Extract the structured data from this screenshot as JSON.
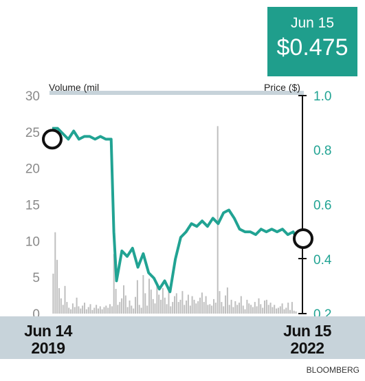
{
  "callout": {
    "date": "Jun 15",
    "price": "$0.475"
  },
  "footer": {
    "start": {
      "line1": "Jun 14",
      "line2": "2019"
    },
    "end": {
      "line1": "Jun 15",
      "line2": "2022"
    }
  },
  "source": "BLOOMBERG",
  "colors": {
    "price_line": "#21a393",
    "volume_bars": "#bfbfbf",
    "callout_bg": "#1f9e8c",
    "footer_band": "#c7d3da",
    "top_rule": "#c7d3da"
  },
  "chart_data": {
    "type": "line",
    "left_axis": {
      "label": "Volume (mil",
      "ticks": [
        "30",
        "25",
        "20",
        "15",
        "10",
        "5",
        "0"
      ],
      "range": [
        0,
        30
      ]
    },
    "right_axis": {
      "label": "Price ($)",
      "ticks": [
        "1.0",
        "0.8",
        "0.6",
        "0.4",
        "0.2"
      ],
      "range": [
        0.2,
        1.0
      ]
    },
    "x_range": [
      "2019-06-14",
      "2022-06-15"
    ],
    "price": {
      "x": [
        "2019-06-14",
        "2019-07-08",
        "2019-08-01",
        "2019-08-25",
        "2019-09-18",
        "2019-10-12",
        "2019-11-05",
        "2019-11-29",
        "2019-12-23",
        "2020-01-16",
        "2020-02-09",
        "2020-03-04",
        "2020-03-16",
        "2020-03-28",
        "2020-04-21",
        "2020-05-15",
        "2020-06-08",
        "2020-07-02",
        "2020-07-26",
        "2020-08-19",
        "2020-09-12",
        "2020-10-06",
        "2020-10-30",
        "2020-11-23",
        "2020-12-17",
        "2021-01-10",
        "2021-02-03",
        "2021-02-27",
        "2021-03-23",
        "2021-04-16",
        "2021-05-10",
        "2021-06-03",
        "2021-06-27",
        "2021-07-21",
        "2021-08-14",
        "2021-09-07",
        "2021-10-01",
        "2021-10-25",
        "2021-11-18",
        "2021-12-12",
        "2022-01-05",
        "2022-01-29",
        "2022-02-22",
        "2022-03-18",
        "2022-04-11",
        "2022-05-05",
        "2022-05-29",
        "2022-06-15"
      ],
      "y": [
        0.88,
        0.88,
        0.86,
        0.84,
        0.87,
        0.84,
        0.85,
        0.85,
        0.84,
        0.85,
        0.84,
        0.84,
        0.5,
        0.32,
        0.43,
        0.41,
        0.44,
        0.37,
        0.42,
        0.35,
        0.33,
        0.29,
        0.32,
        0.28,
        0.4,
        0.48,
        0.5,
        0.53,
        0.52,
        0.54,
        0.52,
        0.55,
        0.53,
        0.57,
        0.58,
        0.55,
        0.51,
        0.5,
        0.5,
        0.49,
        0.51,
        0.5,
        0.51,
        0.5,
        0.51,
        0.49,
        0.5,
        0.475
      ]
    },
    "volume": {
      "values": [
        5.5,
        11.2,
        7.4,
        3.5,
        2.1,
        1.2,
        3.8,
        1.6,
        0.8,
        0.6,
        1.4,
        0.9,
        2.2,
        1.0,
        0.7,
        1.1,
        1.5,
        0.6,
        0.9,
        1.3,
        0.5,
        0.8,
        1.2,
        0.7,
        1.0,
        0.6,
        0.9,
        1.1,
        0.8,
        1.3,
        1.0,
        8.2,
        3.4,
        1.2,
        1.6,
        2.1,
        3.9,
        2.5,
        0.9,
        1.8,
        1.1,
        0.7,
        2.3,
        4.6,
        1.2,
        0.8,
        5.3,
        2.8,
        1.1,
        4.8,
        3.3,
        2.0,
        1.4,
        4.1,
        2.6,
        1.9,
        3.5,
        2.2,
        1.3,
        3.2,
        1.0,
        1.6,
        2.4,
        2.8,
        1.6,
        1.9,
        3.1,
        1.2,
        1.8,
        2.6,
        1.1,
        2.4,
        1.9,
        1.4,
        1.7,
        2.2,
        2.9,
        1.6,
        2.4,
        1.2,
        1.3,
        1.1,
        2.0,
        1.5,
        25.8,
        3.1,
        1.6,
        1.0,
        2.5,
        3.6,
        1.2,
        1.9,
        0.9,
        1.7,
        1.2,
        1.5,
        2.4,
        1.1,
        0.6,
        1.9,
        1.4,
        1.2,
        0.9,
        1.6,
        1.0,
        2.1,
        1.3,
        0.8,
        1.8,
        1.9,
        1.2,
        1.5,
        0.9,
        1.2,
        0.7,
        0.8,
        1.0,
        1.4,
        0.6,
        0.8,
        1.5,
        0.5,
        1.6,
        0.4,
        0.3
      ],
      "highlights": [
        {
          "index": 84,
          "value": 25.8
        }
      ]
    }
  }
}
